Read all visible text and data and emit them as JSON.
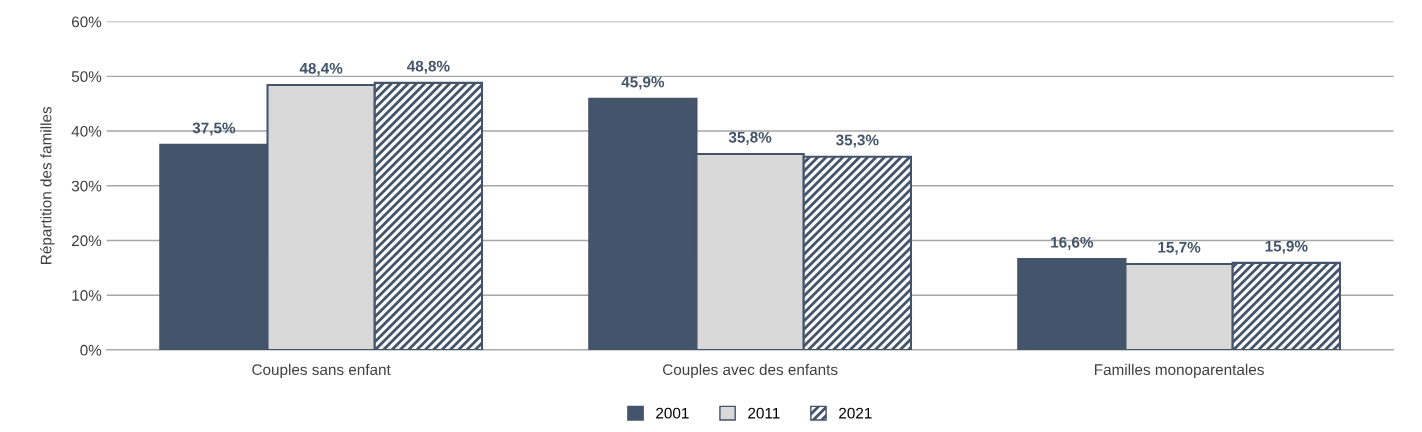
{
  "chart_data": {
    "type": "bar",
    "ylabel": "Répartition des familles",
    "categories": [
      "Couples sans enfant",
      "Couples avec des enfants",
      "Familles monoparentales"
    ],
    "series": [
      {
        "name": "2001",
        "color": "#44546a",
        "values": [
          37.5,
          45.9,
          16.6
        ],
        "value_labels": [
          "37,5%",
          "45,9%",
          "16,6%"
        ]
      },
      {
        "name": "2011",
        "color": "#d9d9d9",
        "values": [
          48.4,
          35.8,
          15.7
        ],
        "value_labels": [
          "48,4%",
          "35,8%",
          "15,7%"
        ]
      },
      {
        "name": "2021",
        "color": "#44546a",
        "values": [
          48.8,
          35.3,
          15.9
        ],
        "value_labels": [
          "48,8%",
          "35,3%",
          "15,9%"
        ]
      }
    ],
    "ylim": [
      0,
      60
    ],
    "yticks": [
      {
        "value": 0,
        "label": "0%"
      },
      {
        "value": 10,
        "label": "10%"
      },
      {
        "value": 20,
        "label": "20%"
      },
      {
        "value": 30,
        "label": "30%"
      },
      {
        "value": 40,
        "label": "40%"
      },
      {
        "value": 50,
        "label": "50%"
      },
      {
        "value": 60,
        "label": "60%"
      }
    ],
    "grid": "y",
    "legend": "bottom"
  }
}
